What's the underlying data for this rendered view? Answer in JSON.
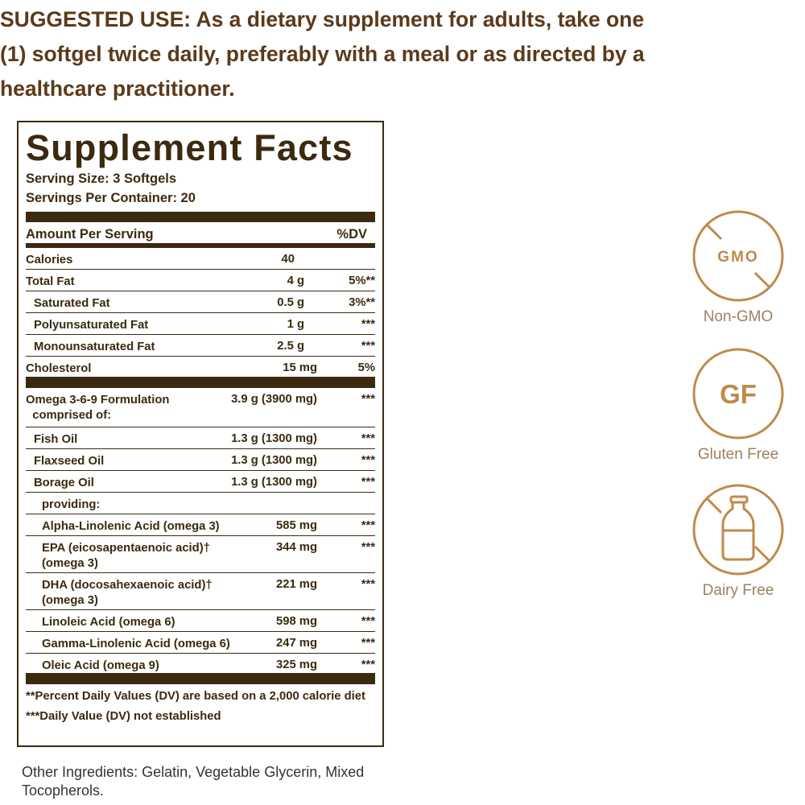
{
  "suggested_use": "SUGGESTED USE: As a dietary supplement for adults, take one (1) softgel twice daily, preferably with a meal or as directed by a healthcare practitioner.",
  "facts": {
    "title": "Supplement Facts",
    "serving_size": "Serving Size: 3 Softgels",
    "servings_per_container": "Servings Per Container: 20",
    "header": {
      "amount": "Amount Per Serving",
      "dv": "%DV"
    },
    "basic": [
      {
        "name": "Calories",
        "amount": "40",
        "dv": "",
        "level": 0
      },
      {
        "name": "Total Fat",
        "amount": "4 g",
        "dv": "5%**",
        "level": 0
      },
      {
        "name": "Saturated Fat",
        "amount": "0.5 g",
        "dv": "3%**",
        "level": 1
      },
      {
        "name": "Polyunsaturated Fat",
        "amount": "1 g",
        "dv": "***",
        "level": 1
      },
      {
        "name": "Monounsaturated Fat",
        "amount": "2.5 g",
        "dv": "***",
        "level": 1
      },
      {
        "name": "Cholesterol",
        "amount": "15 mg",
        "dv": "5%",
        "level": 0
      }
    ],
    "omega": [
      {
        "name": "Omega 3-6-9 Formulation\n  comprised of:",
        "amount": "3.9 g (3900 mg)",
        "dv": "***",
        "level": 0,
        "kind": "omega"
      },
      {
        "name": "Fish Oil",
        "amount": "1.3 g (1300 mg)",
        "dv": "***",
        "level": 1
      },
      {
        "name": "Flaxseed Oil",
        "amount": "1.3 g (1300 mg)",
        "dv": "***",
        "level": 1
      },
      {
        "name": "Borage Oil",
        "amount": "1.3 g (1300 mg)",
        "dv": "***",
        "level": 1
      },
      {
        "name": "providing:",
        "amount": "",
        "dv": "",
        "level": 2
      },
      {
        "name": "Alpha-Linolenic Acid (omega 3)",
        "amount": "585 mg",
        "dv": "***",
        "level": 2
      },
      {
        "name": "EPA (eicosapentaenoic acid)†\n(omega 3)",
        "amount": "344 mg",
        "dv": "***",
        "level": 2,
        "kind": "tall"
      },
      {
        "name": "DHA (docosahexaenoic acid)†\n(omega 3)",
        "amount": "221 mg",
        "dv": "***",
        "level": 2,
        "kind": "tall"
      },
      {
        "name": "Linoleic Acid (omega 6)",
        "amount": "598 mg",
        "dv": "***",
        "level": 2
      },
      {
        "name": "Gamma-Linolenic Acid (omega 6)",
        "amount": "247 mg",
        "dv": "***",
        "level": 2
      },
      {
        "name": "Oleic Acid (omega 9)",
        "amount": "325 mg",
        "dv": "***",
        "level": 2
      }
    ],
    "footnotes": [
      "**Percent Daily Values (DV) are based on a 2,000 calorie diet",
      "***Daily Value (DV) not established"
    ]
  },
  "other_ingredients": "Other Ingredients: Gelatin, Vegetable Glycerin, Mixed Tocopherols.",
  "badges": [
    {
      "icon": "no-gmo-icon",
      "text": "GMO",
      "label": "Non-GMO"
    },
    {
      "icon": "gluten-free-icon",
      "text": "GF",
      "label": "Gluten Free"
    },
    {
      "icon": "dairy-free-icon",
      "text": "",
      "label": "Dairy Free"
    }
  ],
  "colors": {
    "label_text": "#3b2a10",
    "heading": "#5b3a1b",
    "badge": "#c08a4a",
    "badge_label": "#9c8160"
  }
}
